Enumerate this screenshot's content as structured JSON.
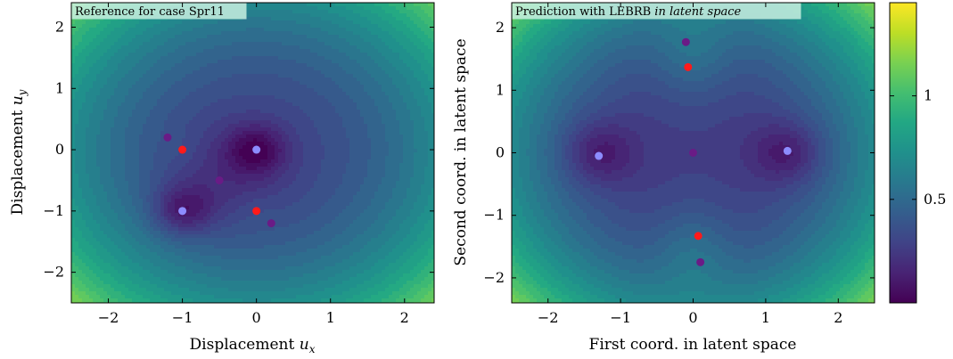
{
  "chart_data": [
    {
      "type": "heatmap",
      "title": "Reference for case Spr11",
      "title_italic": "",
      "xlabel": "Displacement",
      "xlabel_symbol": "u",
      "xlabel_subscript": "x",
      "ylabel": "Displacement",
      "ylabel_symbol": "u",
      "ylabel_subscript": "y",
      "xlim": [
        -2.5,
        2.4
      ],
      "ylim": [
        -2.5,
        2.4
      ],
      "xticks": [
        -2,
        -1,
        0,
        1,
        2
      ],
      "yticks": [
        -2,
        -1,
        0,
        1,
        2
      ],
      "minima": [
        {
          "x": 0.0,
          "y": 0.0
        },
        {
          "x": -1.0,
          "y": -1.0
        }
      ],
      "red_points": [
        {
          "x": -1.0,
          "y": 0.0
        },
        {
          "x": 0.0,
          "y": -1.0
        }
      ],
      "purple_points": [
        {
          "x": -1.2,
          "y": 0.2
        },
        {
          "x": -0.5,
          "y": -0.5
        },
        {
          "x": 0.2,
          "y": -1.2
        }
      ],
      "light_blue_points": [
        {
          "x": 0.0,
          "y": 0.0
        },
        {
          "x": -1.0,
          "y": -1.0
        }
      ]
    },
    {
      "type": "heatmap",
      "title": "Prediction with LEBRB ",
      "title_italic": "in latent space",
      "xlabel": "First coord. in latent space",
      "ylabel": "Second coord. in latent space",
      "xlim": [
        -2.5,
        2.5
      ],
      "ylim": [
        -2.4,
        2.4
      ],
      "xticks": [
        -2,
        -1,
        0,
        1,
        2
      ],
      "yticks": [
        -2,
        -1,
        0,
        1,
        2
      ],
      "minima": [
        {
          "x": -1.3,
          "y": -0.05
        },
        {
          "x": 1.3,
          "y": 0.03
        }
      ],
      "red_points": [
        {
          "x": -0.07,
          "y": 1.37
        },
        {
          "x": 0.07,
          "y": -1.33
        }
      ],
      "purple_points": [
        {
          "x": -0.1,
          "y": 1.77
        },
        {
          "x": 0.0,
          "y": 0.0
        },
        {
          "x": 0.1,
          "y": -1.75
        }
      ],
      "light_blue_points": [
        {
          "x": -1.3,
          "y": -0.05
        },
        {
          "x": 1.3,
          "y": 0.03
        }
      ]
    }
  ],
  "colorbar": {
    "colormap": "viridis",
    "range": [
      0.0,
      1.45
    ],
    "ticks": [
      {
        "value": 0.5,
        "label": "0.5"
      },
      {
        "value": 1.0,
        "label": "1"
      }
    ]
  },
  "colors": {
    "red_point": "#ff1a1a",
    "purple_point": "#6a1b86",
    "light_blue_point": "#8c8cff",
    "title_box": "#c8f0e0"
  }
}
